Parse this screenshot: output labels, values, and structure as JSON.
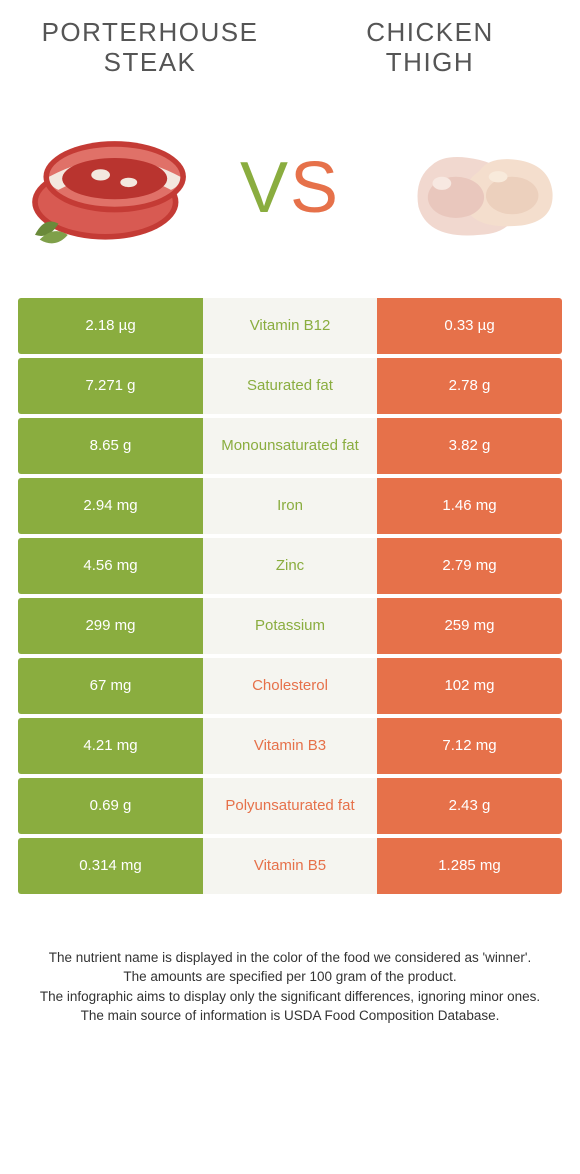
{
  "colors": {
    "left": "#8aad3f",
    "right": "#e6714a",
    "mid_bg": "#f5f5f0",
    "text_dark": "#333333"
  },
  "header": {
    "left_title": "PORTERHOUSE STEAK",
    "right_title": "CHICKEN THIGH"
  },
  "vs": {
    "v": "V",
    "s": "S"
  },
  "rows": [
    {
      "left": "2.18 µg",
      "label": "Vitamin B12",
      "right": "0.33 µg",
      "winner": "left"
    },
    {
      "left": "7.271 g",
      "label": "Saturated fat",
      "right": "2.78 g",
      "winner": "left"
    },
    {
      "left": "8.65 g",
      "label": "Monounsaturated fat",
      "right": "3.82 g",
      "winner": "left"
    },
    {
      "left": "2.94 mg",
      "label": "Iron",
      "right": "1.46 mg",
      "winner": "left"
    },
    {
      "left": "4.56 mg",
      "label": "Zinc",
      "right": "2.79 mg",
      "winner": "left"
    },
    {
      "left": "299 mg",
      "label": "Potassium",
      "right": "259 mg",
      "winner": "left"
    },
    {
      "left": "67 mg",
      "label": "Cholesterol",
      "right": "102 mg",
      "winner": "right"
    },
    {
      "left": "4.21 mg",
      "label": "Vitamin B3",
      "right": "7.12 mg",
      "winner": "right"
    },
    {
      "left": "0.69 g",
      "label": "Polyunsaturated fat",
      "right": "2.43 g",
      "winner": "right"
    },
    {
      "left": "0.314 mg",
      "label": "Vitamin B5",
      "right": "1.285 mg",
      "winner": "right"
    }
  ],
  "footer": {
    "line1": "The nutrient name is displayed in the color of the food we considered as 'winner'.",
    "line2": "The amounts are specified per 100 gram of the product.",
    "line3": "The infographic aims to display only the significant differences, ignoring minor ones.",
    "line4": "The main source of information is USDA Food Composition Database."
  }
}
